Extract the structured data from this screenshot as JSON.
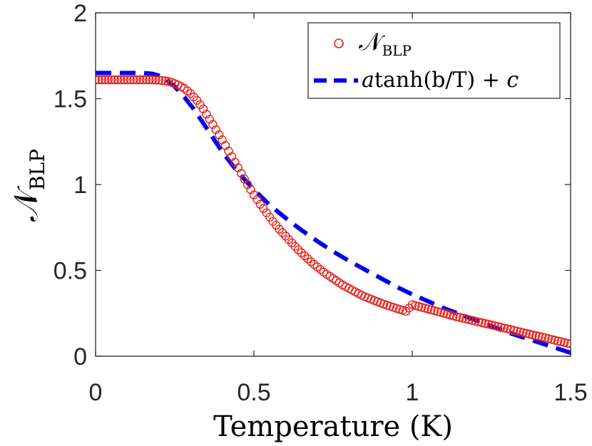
{
  "chart_data": {
    "type": "line",
    "title": "",
    "xlabel": "Temperature (K)",
    "ylabel": {
      "base": "𝒩",
      "sub": "BLP"
    },
    "xlim": [
      0,
      1.5
    ],
    "ylim": [
      0,
      2
    ],
    "xticks": [
      0,
      0.5,
      1,
      1.5
    ],
    "xtick_labels": [
      "0",
      "0.5",
      "1",
      "1.5"
    ],
    "yticks": [
      0,
      0.5,
      1,
      1.5,
      2
    ],
    "ytick_labels": [
      "0",
      "0.5",
      "1",
      "1.5",
      "2"
    ],
    "grid": false,
    "legend_position": "top-right",
    "series": [
      {
        "name": "𝒩_BLP",
        "legend_label": {
          "base": "𝒩",
          "sub": "BLP"
        },
        "style": "markers",
        "marker": "circle",
        "color": "#e8211c",
        "x": [
          0,
          0.02,
          0.04,
          0.06,
          0.08,
          0.1,
          0.12,
          0.14,
          0.16,
          0.18,
          0.2,
          0.22,
          0.24,
          0.26,
          0.28,
          0.3,
          0.32,
          0.34,
          0.36,
          0.38,
          0.4,
          0.42,
          0.44,
          0.46,
          0.48,
          0.5,
          0.52,
          0.54,
          0.56,
          0.58,
          0.6,
          0.62,
          0.64,
          0.66,
          0.68,
          0.7,
          0.72,
          0.74,
          0.76,
          0.78,
          0.8,
          0.82,
          0.84,
          0.86,
          0.88,
          0.9,
          0.92,
          0.94,
          0.96,
          0.98,
          1.0,
          1.02,
          1.04,
          1.06,
          1.08,
          1.1,
          1.12,
          1.14,
          1.16,
          1.18,
          1.2,
          1.22,
          1.24,
          1.26,
          1.28,
          1.3,
          1.32,
          1.34,
          1.36,
          1.38,
          1.4,
          1.42,
          1.44,
          1.46,
          1.48,
          1.5
        ],
        "y": [
          1.61,
          1.61,
          1.61,
          1.61,
          1.61,
          1.61,
          1.61,
          1.61,
          1.61,
          1.61,
          1.608,
          1.604,
          1.595,
          1.58,
          1.56,
          1.53,
          1.49,
          1.44,
          1.38,
          1.32,
          1.26,
          1.195,
          1.13,
          1.065,
          1.0,
          0.94,
          0.885,
          0.835,
          0.785,
          0.74,
          0.7,
          0.66,
          0.62,
          0.585,
          0.55,
          0.52,
          0.49,
          0.465,
          0.44,
          0.415,
          0.395,
          0.375,
          0.355,
          0.34,
          0.325,
          0.31,
          0.297,
          0.285,
          0.273,
          0.262,
          0.3,
          0.29,
          0.28,
          0.27,
          0.26,
          0.25,
          0.24,
          0.23,
          0.222,
          0.213,
          0.204,
          0.195,
          0.187,
          0.178,
          0.169,
          0.16,
          0.151,
          0.142,
          0.133,
          0.124,
          0.116,
          0.107,
          0.098,
          0.089,
          0.08,
          0.071
        ]
      },
      {
        "name": "atanh(b/T) + c",
        "legend_label": {
          "pre": "a",
          "mid": "tanh(b/T) + ",
          "post": "c"
        },
        "style": "dashed",
        "color": "#0000ee",
        "x": [
          0,
          0.1,
          0.15,
          0.18,
          0.2,
          0.22,
          0.25,
          0.28,
          0.31,
          0.35,
          0.4,
          0.45,
          0.5,
          0.55,
          0.6,
          0.65,
          0.7,
          0.75,
          0.8,
          0.85,
          0.9,
          0.95,
          1.0,
          1.05,
          1.1,
          1.15,
          1.2,
          1.25,
          1.3,
          1.35,
          1.4,
          1.45,
          1.5
        ],
        "y": [
          1.65,
          1.65,
          1.65,
          1.645,
          1.635,
          1.615,
          1.57,
          1.51,
          1.44,
          1.33,
          1.19,
          1.07,
          0.97,
          0.88,
          0.805,
          0.735,
          0.67,
          0.61,
          0.555,
          0.505,
          0.455,
          0.405,
          0.36,
          0.32,
          0.28,
          0.245,
          0.21,
          0.175,
          0.14,
          0.11,
          0.08,
          0.05,
          0.02
        ]
      }
    ]
  }
}
